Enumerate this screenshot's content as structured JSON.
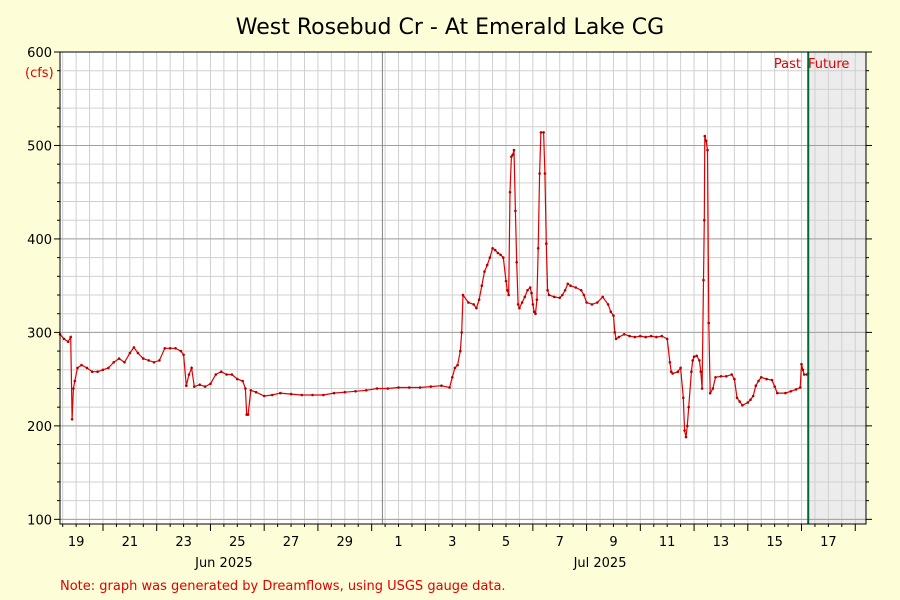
{
  "chart_data": {
    "type": "line",
    "title": "West Rosebud Cr - At Emerald Lake CG",
    "ylabel": "(cfs)",
    "note": "Note: graph was generated by Dreamflows, using USGS gauge data.",
    "past_label": "Past",
    "future_label": "Future",
    "xlim": [
      18.4,
      48.4
    ],
    "ylim": [
      95,
      600
    ],
    "y_ticks": [
      100,
      200,
      300,
      400,
      500,
      600
    ],
    "x_ticks": [
      {
        "x": 19,
        "label": "19"
      },
      {
        "x": 21,
        "label": "21"
      },
      {
        "x": 23,
        "label": "23"
      },
      {
        "x": 25,
        "label": "25"
      },
      {
        "x": 27,
        "label": "27"
      },
      {
        "x": 29,
        "label": "29"
      },
      {
        "x": 31,
        "label": "1"
      },
      {
        "x": 33,
        "label": "3"
      },
      {
        "x": 35,
        "label": "5"
      },
      {
        "x": 37,
        "label": "7"
      },
      {
        "x": 39,
        "label": "9"
      },
      {
        "x": 41,
        "label": "11"
      },
      {
        "x": 43,
        "label": "13"
      },
      {
        "x": 45,
        "label": "15"
      },
      {
        "x": 47,
        "label": "17"
      }
    ],
    "month_labels": [
      {
        "x": 24.5,
        "label": "Jun 2025"
      },
      {
        "x": 38.5,
        "label": "Jul 2025"
      }
    ],
    "month_boundary": 30.4,
    "now_x": 46.25,
    "series": [
      {
        "color": "#e00000",
        "points": [
          [
            18.4,
            298
          ],
          [
            18.55,
            293
          ],
          [
            18.7,
            290
          ],
          [
            18.8,
            295
          ],
          [
            18.85,
            207
          ],
          [
            18.9,
            240
          ],
          [
            18.95,
            248
          ],
          [
            19.05,
            262
          ],
          [
            19.2,
            265
          ],
          [
            19.4,
            262
          ],
          [
            19.6,
            258
          ],
          [
            19.8,
            258
          ],
          [
            20.0,
            260
          ],
          [
            20.2,
            262
          ],
          [
            20.4,
            268
          ],
          [
            20.6,
            272
          ],
          [
            20.8,
            268
          ],
          [
            21.0,
            278
          ],
          [
            21.15,
            284
          ],
          [
            21.3,
            278
          ],
          [
            21.5,
            272
          ],
          [
            21.7,
            270
          ],
          [
            21.9,
            268
          ],
          [
            22.1,
            270
          ],
          [
            22.3,
            283
          ],
          [
            22.5,
            283
          ],
          [
            22.7,
            283
          ],
          [
            22.9,
            280
          ],
          [
            23.0,
            276
          ],
          [
            23.1,
            243
          ],
          [
            23.2,
            255
          ],
          [
            23.3,
            262
          ],
          [
            23.4,
            242
          ],
          [
            23.6,
            244
          ],
          [
            23.8,
            242
          ],
          [
            24.0,
            245
          ],
          [
            24.2,
            255
          ],
          [
            24.4,
            258
          ],
          [
            24.6,
            255
          ],
          [
            24.8,
            255
          ],
          [
            25.0,
            250
          ],
          [
            25.2,
            248
          ],
          [
            25.3,
            240
          ],
          [
            25.35,
            212
          ],
          [
            25.4,
            212
          ],
          [
            25.5,
            238
          ],
          [
            25.7,
            236
          ],
          [
            26.0,
            232
          ],
          [
            26.3,
            233
          ],
          [
            26.6,
            235
          ],
          [
            27.0,
            234
          ],
          [
            27.4,
            233
          ],
          [
            27.8,
            233
          ],
          [
            28.2,
            233
          ],
          [
            28.6,
            235
          ],
          [
            29.0,
            236
          ],
          [
            29.4,
            237
          ],
          [
            29.8,
            238
          ],
          [
            30.2,
            240
          ],
          [
            30.6,
            240
          ],
          [
            31.0,
            241
          ],
          [
            31.4,
            241
          ],
          [
            31.8,
            241
          ],
          [
            32.2,
            242
          ],
          [
            32.6,
            243
          ],
          [
            32.9,
            241
          ],
          [
            33.0,
            252
          ],
          [
            33.1,
            262
          ],
          [
            33.2,
            265
          ],
          [
            33.3,
            280
          ],
          [
            33.35,
            300
          ],
          [
            33.4,
            340
          ],
          [
            33.6,
            332
          ],
          [
            33.8,
            330
          ],
          [
            33.9,
            326
          ],
          [
            34.0,
            335
          ],
          [
            34.1,
            350
          ],
          [
            34.2,
            365
          ],
          [
            34.3,
            372
          ],
          [
            34.4,
            380
          ],
          [
            34.5,
            390
          ],
          [
            34.6,
            388
          ],
          [
            34.7,
            385
          ],
          [
            34.8,
            383
          ],
          [
            34.9,
            380
          ],
          [
            35.0,
            355
          ],
          [
            35.05,
            345
          ],
          [
            35.1,
            340
          ],
          [
            35.15,
            450
          ],
          [
            35.2,
            488
          ],
          [
            35.25,
            490
          ],
          [
            35.3,
            495
          ],
          [
            35.35,
            430
          ],
          [
            35.4,
            375
          ],
          [
            35.45,
            330
          ],
          [
            35.5,
            326
          ],
          [
            35.6,
            332
          ],
          [
            35.7,
            338
          ],
          [
            35.8,
            345
          ],
          [
            35.9,
            348
          ],
          [
            35.95,
            342
          ],
          [
            36.0,
            330
          ],
          [
            36.05,
            322
          ],
          [
            36.1,
            320
          ],
          [
            36.15,
            335
          ],
          [
            36.2,
            390
          ],
          [
            36.25,
            470
          ],
          [
            36.3,
            514
          ],
          [
            36.4,
            514
          ],
          [
            36.45,
            470
          ],
          [
            36.5,
            395
          ],
          [
            36.55,
            345
          ],
          [
            36.6,
            340
          ],
          [
            36.8,
            338
          ],
          [
            37.0,
            337
          ],
          [
            37.1,
            340
          ],
          [
            37.2,
            345
          ],
          [
            37.3,
            352
          ],
          [
            37.4,
            350
          ],
          [
            37.6,
            348
          ],
          [
            37.8,
            345
          ],
          [
            37.9,
            340
          ],
          [
            38.0,
            332
          ],
          [
            38.2,
            330
          ],
          [
            38.4,
            332
          ],
          [
            38.6,
            338
          ],
          [
            38.8,
            330
          ],
          [
            38.9,
            322
          ],
          [
            39.0,
            318
          ],
          [
            39.05,
            300
          ],
          [
            39.1,
            293
          ],
          [
            39.2,
            295
          ],
          [
            39.4,
            298
          ],
          [
            39.6,
            296
          ],
          [
            39.8,
            295
          ],
          [
            40.0,
            296
          ],
          [
            40.2,
            295
          ],
          [
            40.4,
            296
          ],
          [
            40.6,
            295
          ],
          [
            40.8,
            296
          ],
          [
            41.0,
            293
          ],
          [
            41.1,
            268
          ],
          [
            41.15,
            258
          ],
          [
            41.2,
            256
          ],
          [
            41.4,
            258
          ],
          [
            41.5,
            262
          ],
          [
            41.6,
            230
          ],
          [
            41.65,
            195
          ],
          [
            41.7,
            188
          ],
          [
            41.75,
            200
          ],
          [
            41.8,
            220
          ],
          [
            41.9,
            258
          ],
          [
            41.95,
            270
          ],
          [
            42.0,
            274
          ],
          [
            42.1,
            275
          ],
          [
            42.2,
            270
          ],
          [
            42.25,
            258
          ],
          [
            42.3,
            240
          ],
          [
            42.35,
            356
          ],
          [
            42.38,
            420
          ],
          [
            42.4,
            510
          ],
          [
            42.45,
            505
          ],
          [
            42.5,
            495
          ],
          [
            42.55,
            310
          ],
          [
            42.6,
            235
          ],
          [
            42.7,
            240
          ],
          [
            42.8,
            252
          ],
          [
            43.0,
            253
          ],
          [
            43.2,
            253
          ],
          [
            43.4,
            255
          ],
          [
            43.5,
            250
          ],
          [
            43.6,
            230
          ],
          [
            43.7,
            226
          ],
          [
            43.8,
            222
          ],
          [
            44.0,
            225
          ],
          [
            44.1,
            228
          ],
          [
            44.2,
            232
          ],
          [
            44.3,
            243
          ],
          [
            44.4,
            248
          ],
          [
            44.5,
            252
          ],
          [
            44.7,
            250
          ],
          [
            44.9,
            249
          ],
          [
            45.0,
            242
          ],
          [
            45.1,
            235
          ],
          [
            45.4,
            235
          ],
          [
            45.6,
            237
          ],
          [
            45.8,
            239
          ],
          [
            45.95,
            241
          ],
          [
            46.0,
            266
          ],
          [
            46.05,
            260
          ],
          [
            46.1,
            255
          ],
          [
            46.2,
            255
          ],
          [
            46.25,
            256
          ]
        ]
      }
    ]
  }
}
